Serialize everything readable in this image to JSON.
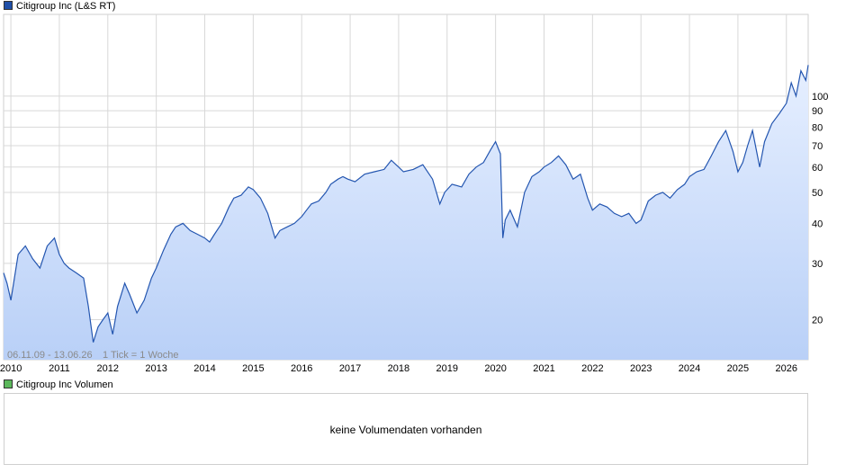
{
  "price_legend": {
    "label": "Citigroup Inc (L&S RT)",
    "color": "#1f4fa8"
  },
  "volume_legend": {
    "label": "Citigroup Inc Volumen",
    "color": "#5cb85c"
  },
  "range_info": "06.11.09 - 13.06.26",
  "tick_info": "1 Tick = 1 Woche",
  "volume_message": "keine Volumendaten vorhanden",
  "colors": {
    "line": "#2456b0",
    "fill_top": "#e6efff",
    "fill_bottom": "#b9d0f7",
    "grid": "#d8d8d8"
  },
  "chart_data": {
    "type": "area",
    "scale": "log",
    "grid": true,
    "y_ticks": [
      20,
      30,
      40,
      50,
      60,
      70,
      80,
      90,
      100
    ],
    "x_tick_labels": [
      "2010",
      "2011",
      "2012",
      "2013",
      "2014",
      "2015",
      "2016",
      "2017",
      "2018",
      "2019",
      "2020",
      "2021",
      "2022",
      "2023",
      "2024",
      "2025",
      "2026"
    ],
    "ylim": [
      15,
      180
    ],
    "series": [
      {
        "x": [
          2009.85,
          2009.92,
          2010.0,
          2010.15,
          2010.3,
          2010.45,
          2010.6,
          2010.75,
          2010.9,
          2011.0,
          2011.1,
          2011.2,
          2011.35,
          2011.5,
          2011.6,
          2011.7,
          2011.8,
          2011.9,
          2012.0,
          2012.1,
          2012.2,
          2012.35,
          2012.45,
          2012.6,
          2012.75,
          2012.9,
          2013.0,
          2013.15,
          2013.3,
          2013.4,
          2013.55,
          2013.7,
          2013.85,
          2014.0,
          2014.1,
          2014.2,
          2014.35,
          2014.5,
          2014.6,
          2014.75,
          2014.9,
          2015.0,
          2015.15,
          2015.3,
          2015.45,
          2015.55,
          2015.7,
          2015.85,
          2016.0,
          2016.1,
          2016.2,
          2016.35,
          2016.5,
          2016.6,
          2016.75,
          2016.85,
          2016.95,
          2017.1,
          2017.3,
          2017.5,
          2017.7,
          2017.85,
          2018.0,
          2018.1,
          2018.3,
          2018.5,
          2018.7,
          2018.85,
          2018.95,
          2019.1,
          2019.3,
          2019.45,
          2019.6,
          2019.75,
          2019.9,
          2020.0,
          2020.1,
          2020.15,
          2020.2,
          2020.3,
          2020.45,
          2020.6,
          2020.75,
          2020.9,
          2021.0,
          2021.15,
          2021.3,
          2021.45,
          2021.6,
          2021.75,
          2021.9,
          2022.0,
          2022.15,
          2022.3,
          2022.45,
          2022.6,
          2022.75,
          2022.9,
          2023.0,
          2023.15,
          2023.3,
          2023.45,
          2023.6,
          2023.75,
          2023.9,
          2024.0,
          2024.15,
          2024.3,
          2024.45,
          2024.6,
          2024.75,
          2024.9,
          2025.0,
          2025.1,
          2025.2,
          2025.3,
          2025.45,
          2025.55,
          2025.7,
          2025.85,
          2026.0,
          2026.1,
          2026.2,
          2026.3,
          2026.4,
          2026.45
        ],
        "y": [
          28,
          26,
          23,
          32,
          34,
          31,
          29,
          34,
          36,
          32,
          30,
          29,
          28,
          27,
          22,
          17,
          19,
          20,
          21,
          18,
          22,
          26,
          24,
          21,
          23,
          27,
          29,
          33,
          37,
          39,
          40,
          38,
          37,
          36,
          35,
          37,
          40,
          45,
          48,
          49,
          52,
          51,
          48,
          43,
          36,
          38,
          39,
          40,
          42,
          44,
          46,
          47,
          50,
          53,
          55,
          56,
          55,
          54,
          57,
          58,
          59,
          63,
          60,
          58,
          59,
          61,
          55,
          46,
          50,
          53,
          52,
          57,
          60,
          62,
          68,
          72,
          66,
          36,
          41,
          44,
          39,
          50,
          56,
          58,
          60,
          62,
          65,
          61,
          55,
          57,
          48,
          44,
          46,
          45,
          43,
          42,
          43,
          40,
          41,
          47,
          49,
          50,
          48,
          51,
          53,
          56,
          58,
          59,
          65,
          72,
          78,
          67,
          58,
          62,
          70,
          78,
          60,
          72,
          82,
          88,
          95,
          110,
          100,
          120,
          112,
          125
        ]
      }
    ]
  }
}
